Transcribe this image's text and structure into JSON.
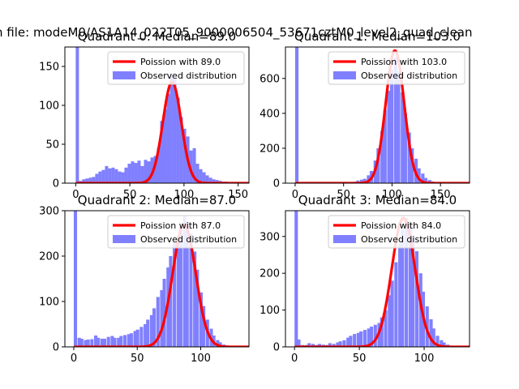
{
  "suptitle": "n file: modeM0/AS1A14_022T05_9000006504_53671cztM0_level2_quad_clean",
  "colors": {
    "hist": "#8080ff",
    "poisson": "#ff0000"
  },
  "chart_data": [
    {
      "type": "bar",
      "title": "Quadrant 0: Median=89.0",
      "legend": [
        "Poission with 89.0",
        "Observed distribution"
      ],
      "legend_loc": "upper right",
      "xlim": [
        -10,
        160
      ],
      "ylim": [
        0,
        175
      ],
      "xticks": [
        0,
        50,
        100,
        150
      ],
      "yticks": [
        0,
        50,
        100,
        150
      ],
      "poisson": {
        "mean": 89.0,
        "peak": 130,
        "sigma": 8.5
      },
      "hist": {
        "bin_width": 3.0,
        "bins": [
          [
            0,
            175
          ],
          [
            3,
            3
          ],
          [
            6,
            5
          ],
          [
            9,
            6
          ],
          [
            12,
            7
          ],
          [
            15,
            8
          ],
          [
            18,
            12
          ],
          [
            21,
            15
          ],
          [
            24,
            17
          ],
          [
            27,
            22
          ],
          [
            30,
            19
          ],
          [
            33,
            20
          ],
          [
            36,
            18
          ],
          [
            39,
            15
          ],
          [
            42,
            14
          ],
          [
            45,
            20
          ],
          [
            48,
            25
          ],
          [
            51,
            28
          ],
          [
            54,
            26
          ],
          [
            57,
            29
          ],
          [
            60,
            22
          ],
          [
            63,
            30
          ],
          [
            66,
            28
          ],
          [
            69,
            33
          ],
          [
            72,
            35
          ],
          [
            75,
            45
          ],
          [
            78,
            80
          ],
          [
            81,
            95
          ],
          [
            84,
            115
          ],
          [
            87,
            140
          ],
          [
            90,
            135
          ],
          [
            93,
            110
          ],
          [
            96,
            85
          ],
          [
            99,
            70
          ],
          [
            102,
            60
          ],
          [
            105,
            42
          ],
          [
            108,
            45
          ],
          [
            111,
            25
          ],
          [
            114,
            18
          ],
          [
            117,
            14
          ],
          [
            120,
            10
          ],
          [
            123,
            7
          ],
          [
            126,
            5
          ],
          [
            129,
            4
          ],
          [
            132,
            3
          ],
          [
            135,
            2
          ],
          [
            138,
            2
          ],
          [
            141,
            1
          ]
        ]
      }
    },
    {
      "type": "bar",
      "title": "Quadrant 1: Median=103.0",
      "legend": [
        "Poission with 103.0",
        "Observed distribution"
      ],
      "legend_loc": "upper right",
      "xlim": [
        -10,
        180
      ],
      "ylim": [
        0,
        780
      ],
      "xticks": [
        0,
        50,
        100,
        150
      ],
      "yticks": [
        0,
        200,
        400,
        600
      ],
      "poisson": {
        "mean": 103.0,
        "peak": 760,
        "sigma": 9.5
      },
      "hist": {
        "bin_width": 3.5,
        "bins": [
          [
            0,
            780
          ],
          [
            56,
            3
          ],
          [
            60,
            8
          ],
          [
            63,
            15
          ],
          [
            67,
            20
          ],
          [
            70,
            25
          ],
          [
            74,
            45
          ],
          [
            77,
            70
          ],
          [
            81,
            130
          ],
          [
            84,
            200
          ],
          [
            88,
            300
          ],
          [
            91,
            420
          ],
          [
            95,
            530
          ],
          [
            98,
            650
          ],
          [
            102,
            720
          ],
          [
            105,
            640
          ],
          [
            109,
            520
          ],
          [
            112,
            400
          ],
          [
            116,
            290
          ],
          [
            119,
            200
          ],
          [
            123,
            140
          ],
          [
            126,
            85
          ],
          [
            130,
            55
          ],
          [
            133,
            30
          ],
          [
            137,
            18
          ],
          [
            140,
            10
          ],
          [
            144,
            6
          ],
          [
            147,
            3
          ],
          [
            151,
            2
          ],
          [
            154,
            1
          ]
        ]
      }
    },
    {
      "type": "bar",
      "title": "Quadrant 2: Median=87.0",
      "legend": [
        "Poission with 87.0",
        "Observed distribution"
      ],
      "legend_loc": "upper right",
      "xlim": [
        -7,
        138
      ],
      "ylim": [
        0,
        300
      ],
      "xticks": [
        0,
        50,
        100
      ],
      "yticks": [
        0,
        100,
        200,
        300
      ],
      "poisson": {
        "mean": 87.0,
        "peak": 270,
        "sigma": 9.0
      },
      "hist": {
        "bin_width": 2.6,
        "bins": [
          [
            0,
            300
          ],
          [
            3,
            20
          ],
          [
            5,
            18
          ],
          [
            8,
            15
          ],
          [
            10,
            16
          ],
          [
            13,
            17
          ],
          [
            16,
            25
          ],
          [
            18,
            20
          ],
          [
            21,
            18
          ],
          [
            23,
            18
          ],
          [
            26,
            22
          ],
          [
            29,
            24
          ],
          [
            31,
            20
          ],
          [
            34,
            20
          ],
          [
            36,
            24
          ],
          [
            39,
            26
          ],
          [
            42,
            28
          ],
          [
            44,
            30
          ],
          [
            47,
            35
          ],
          [
            49,
            38
          ],
          [
            52,
            44
          ],
          [
            55,
            50
          ],
          [
            57,
            60
          ],
          [
            60,
            70
          ],
          [
            62,
            85
          ],
          [
            65,
            110
          ],
          [
            68,
            125
          ],
          [
            70,
            150
          ],
          [
            73,
            175
          ],
          [
            75,
            200
          ],
          [
            78,
            230
          ],
          [
            81,
            245
          ],
          [
            83,
            265
          ],
          [
            86,
            290
          ],
          [
            88,
            275
          ],
          [
            91,
            250
          ],
          [
            94,
            210
          ],
          [
            96,
            170
          ],
          [
            99,
            120
          ],
          [
            101,
            90
          ],
          [
            104,
            60
          ],
          [
            107,
            40
          ],
          [
            109,
            25
          ],
          [
            112,
            15
          ],
          [
            114,
            10
          ],
          [
            117,
            5
          ],
          [
            120,
            3
          ]
        ]
      }
    },
    {
      "type": "bar",
      "title": "Quadrant 3: Median=84.0",
      "legend": [
        "Poission with 84.0",
        "Observed distribution"
      ],
      "legend_loc": "upper right",
      "xlim": [
        -7,
        135
      ],
      "ylim": [
        0,
        370
      ],
      "xticks": [
        0,
        50,
        100
      ],
      "yticks": [
        0,
        100,
        200,
        300
      ],
      "poisson": {
        "mean": 84.0,
        "peak": 350,
        "sigma": 9.0
      },
      "hist": {
        "bin_width": 2.6,
        "bins": [
          [
            0,
            370
          ],
          [
            2,
            20
          ],
          [
            5,
            5
          ],
          [
            8,
            5
          ],
          [
            10,
            10
          ],
          [
            13,
            8
          ],
          [
            16,
            5
          ],
          [
            18,
            8
          ],
          [
            21,
            6
          ],
          [
            24,
            5
          ],
          [
            26,
            10
          ],
          [
            29,
            8
          ],
          [
            32,
            12
          ],
          [
            34,
            15
          ],
          [
            37,
            18
          ],
          [
            40,
            25
          ],
          [
            42,
            30
          ],
          [
            45,
            35
          ],
          [
            48,
            38
          ],
          [
            50,
            42
          ],
          [
            53,
            46
          ],
          [
            56,
            50
          ],
          [
            58,
            55
          ],
          [
            61,
            60
          ],
          [
            64,
            65
          ],
          [
            66,
            80
          ],
          [
            69,
            100
          ],
          [
            72,
            140
          ],
          [
            74,
            180
          ],
          [
            77,
            230
          ],
          [
            80,
            280
          ],
          [
            82,
            320
          ],
          [
            85,
            350
          ],
          [
            88,
            340
          ],
          [
            90,
            300
          ],
          [
            93,
            260
          ],
          [
            96,
            200
          ],
          [
            98,
            150
          ],
          [
            101,
            110
          ],
          [
            104,
            75
          ],
          [
            106,
            50
          ],
          [
            109,
            30
          ],
          [
            112,
            18
          ],
          [
            114,
            12
          ],
          [
            117,
            6
          ],
          [
            120,
            3
          ]
        ]
      }
    }
  ]
}
